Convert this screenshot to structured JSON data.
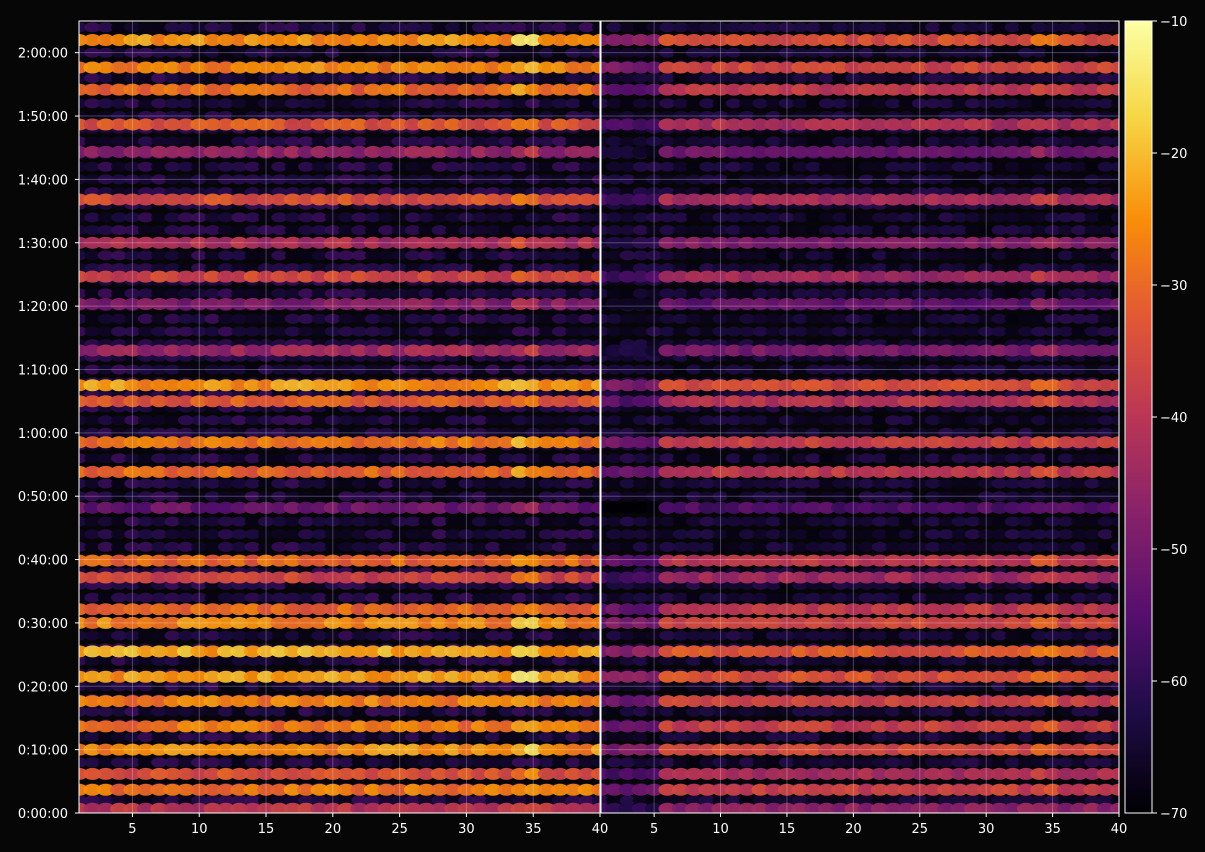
{
  "chart_data": {
    "type": "heatmap",
    "colormap": "inferno",
    "background": "#060606",
    "grid": true,
    "panels": [
      {
        "name": "",
        "xlim": [
          1,
          40
        ],
        "xticks": [
          5,
          10,
          15,
          20,
          25,
          30,
          35,
          40
        ],
        "intensity_scale": 1.0
      },
      {
        "name": "",
        "xlim": [
          1,
          40
        ],
        "xticks": [
          5,
          10,
          15,
          20,
          25,
          30,
          35,
          40
        ],
        "intensity_scale": 0.78
      }
    ],
    "y_axis": {
      "unit": "seconds",
      "ylim": [
        0,
        7500
      ],
      "ticks": [
        {
          "value": 0,
          "label": "0:00:00"
        },
        {
          "value": 600,
          "label": "0:10:00"
        },
        {
          "value": 1200,
          "label": "0:20:00"
        },
        {
          "value": 1800,
          "label": "0:30:00"
        },
        {
          "value": 2400,
          "label": "0:40:00"
        },
        {
          "value": 3000,
          "label": "0:50:00"
        },
        {
          "value": 3600,
          "label": "1:00:00"
        },
        {
          "value": 4200,
          "label": "1:10:00"
        },
        {
          "value": 4800,
          "label": "1:20:00"
        },
        {
          "value": 5400,
          "label": "1:30:00"
        },
        {
          "value": 6000,
          "label": "1:40:00"
        },
        {
          "value": 6600,
          "label": "1:50:00"
        },
        {
          "value": 7200,
          "label": "2:00:00"
        }
      ]
    },
    "colorbar": {
      "range": [
        -70,
        -10
      ],
      "ticks": [
        {
          "value": -10,
          "label": "−10"
        },
        {
          "value": -20,
          "label": "−20"
        },
        {
          "value": -30,
          "label": "−30"
        },
        {
          "value": -40,
          "label": "−40"
        },
        {
          "value": -50,
          "label": "−50"
        },
        {
          "value": -60,
          "label": "−60"
        },
        {
          "value": -70,
          "label": "−70"
        }
      ]
    },
    "bands": [
      {
        "t": 7320,
        "db": -24
      },
      {
        "t": 7060,
        "db": -26
      },
      {
        "t": 6850,
        "db": -30
      },
      {
        "t": 6520,
        "db": -33
      },
      {
        "t": 6260,
        "db": -46
      },
      {
        "t": 5810,
        "db": -34
      },
      {
        "t": 5400,
        "db": -42
      },
      {
        "t": 5080,
        "db": -36
      },
      {
        "t": 4820,
        "db": -48
      },
      {
        "t": 4380,
        "db": -44
      },
      {
        "t": 4050,
        "db": -24
      },
      {
        "t": 3900,
        "db": -32
      },
      {
        "t": 3510,
        "db": -28
      },
      {
        "t": 3230,
        "db": -30
      },
      {
        "t": 2890,
        "db": -52
      },
      {
        "t": 2390,
        "db": -30
      },
      {
        "t": 2230,
        "db": -36
      },
      {
        "t": 1930,
        "db": -30
      },
      {
        "t": 1800,
        "db": -26
      },
      {
        "t": 1530,
        "db": -22
      },
      {
        "t": 1290,
        "db": -23
      },
      {
        "t": 1060,
        "db": -27
      },
      {
        "t": 820,
        "db": -28
      },
      {
        "t": 600,
        "db": -25
      },
      {
        "t": 370,
        "db": -34
      },
      {
        "t": 220,
        "db": -28
      },
      {
        "t": 40,
        "db": -40
      }
    ],
    "hotspot_x": 34.5
  }
}
